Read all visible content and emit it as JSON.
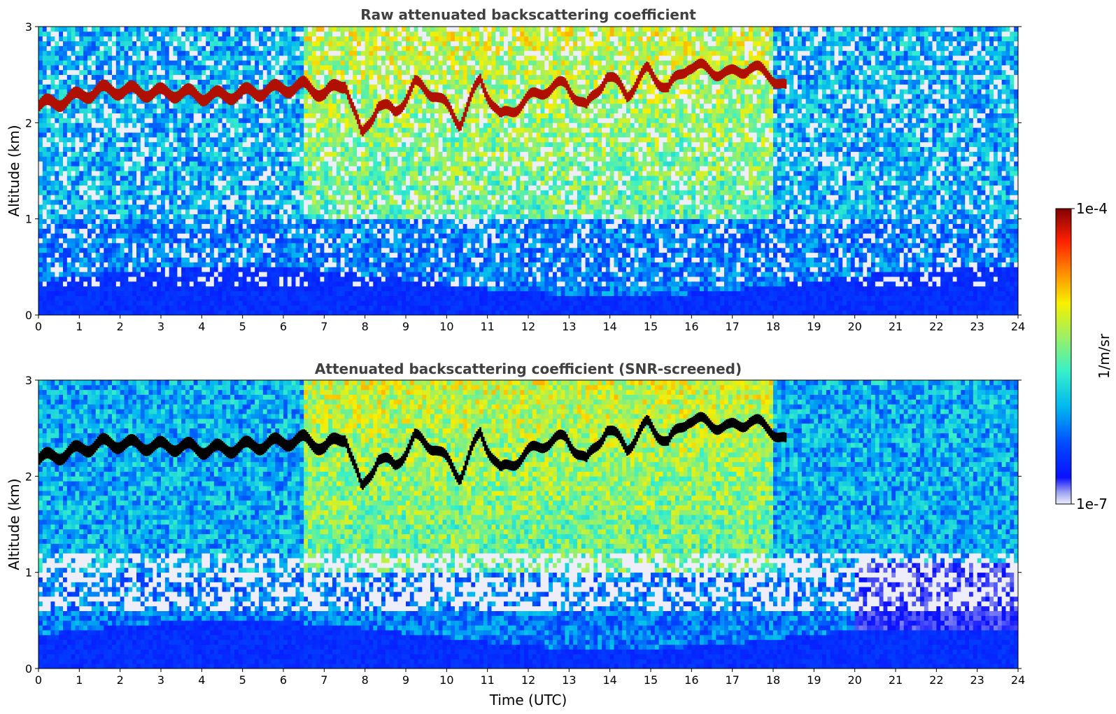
{
  "chart_data": [
    {
      "type": "heatmap",
      "title": "Raw attenuated backscattering coefficient",
      "xlabel": "",
      "ylabel": "Altitude (km)",
      "xlim": [
        0,
        24
      ],
      "ylim": [
        0,
        3
      ],
      "x_ticks": [
        "0",
        "1",
        "2",
        "3",
        "4",
        "5",
        "6",
        "7",
        "8",
        "9",
        "10",
        "11",
        "12",
        "13",
        "14",
        "15",
        "16",
        "17",
        "18",
        "19",
        "20",
        "21",
        "22",
        "23",
        "24"
      ],
      "y_ticks": [
        "0",
        "1",
        "2",
        "3"
      ],
      "screened": false,
      "cloud_layer_altitude_km": [
        {
          "t": 0.0,
          "alt": 2.18
        },
        {
          "t": 0.5,
          "alt": 2.22
        },
        {
          "t": 1.0,
          "alt": 2.28
        },
        {
          "t": 1.5,
          "alt": 2.34
        },
        {
          "t": 2.0,
          "alt": 2.34
        },
        {
          "t": 2.5,
          "alt": 2.32
        },
        {
          "t": 3.0,
          "alt": 2.31
        },
        {
          "t": 3.5,
          "alt": 2.31
        },
        {
          "t": 4.0,
          "alt": 2.28
        },
        {
          "t": 4.5,
          "alt": 2.28
        },
        {
          "t": 5.0,
          "alt": 2.31
        },
        {
          "t": 5.5,
          "alt": 2.33
        },
        {
          "t": 6.0,
          "alt": 2.36
        },
        {
          "t": 6.5,
          "alt": 2.38
        },
        {
          "t": 7.0,
          "alt": 2.3
        },
        {
          "t": 7.5,
          "alt": 2.42
        },
        {
          "t": 7.9,
          "alt": 1.85
        },
        {
          "t": 8.3,
          "alt": 2.2
        },
        {
          "t": 8.7,
          "alt": 2.1
        },
        {
          "t": 9.2,
          "alt": 2.4
        },
        {
          "t": 9.7,
          "alt": 2.3
        },
        {
          "t": 10.3,
          "alt": 2.0
        },
        {
          "t": 10.8,
          "alt": 2.45
        },
        {
          "t": 11.3,
          "alt": 2.05
        },
        {
          "t": 11.8,
          "alt": 2.2
        },
        {
          "t": 12.4,
          "alt": 2.35
        },
        {
          "t": 12.9,
          "alt": 2.4
        },
        {
          "t": 13.4,
          "alt": 2.15
        },
        {
          "t": 13.9,
          "alt": 2.5
        },
        {
          "t": 14.4,
          "alt": 2.3
        },
        {
          "t": 14.9,
          "alt": 2.55
        },
        {
          "t": 15.4,
          "alt": 2.35
        },
        {
          "t": 15.9,
          "alt": 2.6
        },
        {
          "t": 16.4,
          "alt": 2.55
        },
        {
          "t": 16.9,
          "alt": 2.5
        },
        {
          "t": 17.4,
          "alt": 2.58
        },
        {
          "t": 17.9,
          "alt": 2.5
        },
        {
          "t": 18.3,
          "alt": 2.35
        }
      ]
    },
    {
      "type": "heatmap",
      "title": "Attenuated backscattering coefficient (SNR-screened)",
      "xlabel": "Time (UTC)",
      "ylabel": "Altitude (km)",
      "xlim": [
        0,
        24
      ],
      "ylim": [
        0,
        3
      ],
      "x_ticks": [
        "0",
        "1",
        "2",
        "3",
        "4",
        "5",
        "6",
        "7",
        "8",
        "9",
        "10",
        "11",
        "12",
        "13",
        "14",
        "15",
        "16",
        "17",
        "18",
        "19",
        "20",
        "21",
        "22",
        "23",
        "24"
      ],
      "y_ticks": [
        "0",
        "1",
        "2",
        "3"
      ],
      "screened": true,
      "cloud_layer_altitude_km": "same as raw panel"
    }
  ],
  "colorbar": {
    "label": "1/m/sr",
    "max_label": "1e-4",
    "min_label": "1e-7",
    "scale": "log",
    "colormap": "jet"
  }
}
